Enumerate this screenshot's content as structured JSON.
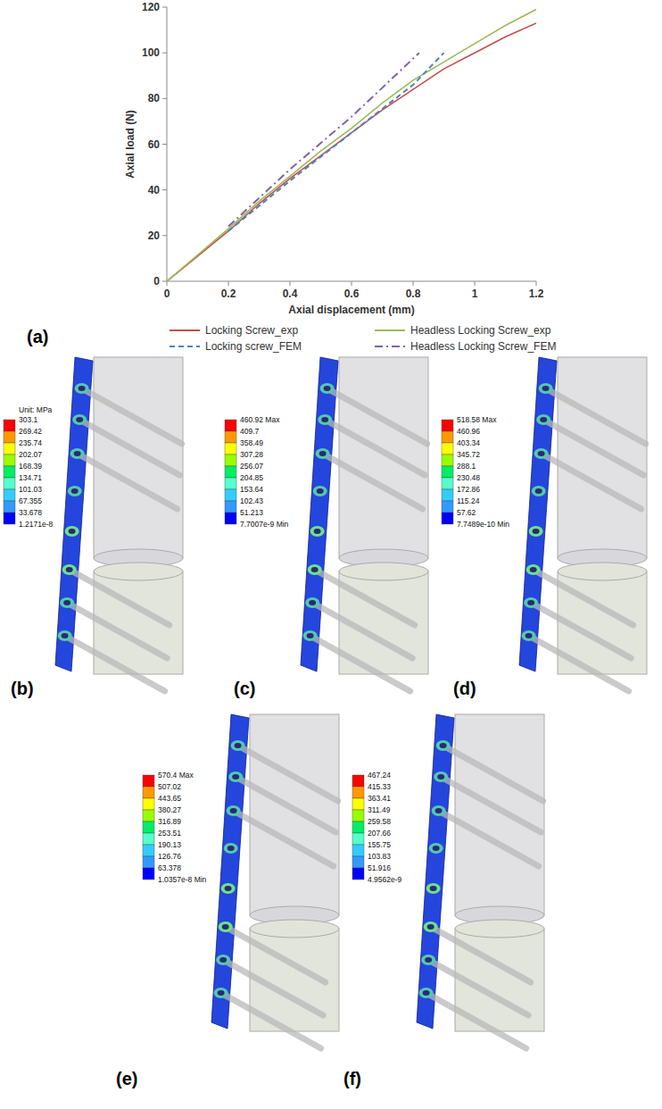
{
  "chart_data": {
    "type": "line",
    "panel_label": "(a)",
    "x_label": "Axial displacement (mm)",
    "y_label": "Axial load (N)",
    "xlim": [
      0,
      1.2
    ],
    "xticks": [
      0,
      0.2,
      0.4,
      0.6,
      0.8,
      1,
      1.2
    ],
    "ylim": [
      0,
      120
    ],
    "yticks": [
      0,
      20,
      40,
      60,
      80,
      100,
      120
    ],
    "grid": false,
    "legend": "bottom",
    "series": [
      {
        "name": "Locking Screw_exp",
        "color": "#c0504d",
        "line_style": "solid",
        "x": [
          0,
          0.1,
          0.2,
          0.3,
          0.4,
          0.5,
          0.6,
          0.7,
          0.8,
          0.9,
          1.0,
          1.1,
          1.2
        ],
        "values": [
          0,
          11,
          22,
          34,
          45,
          55,
          65,
          75,
          84,
          93,
          100,
          107,
          113
        ]
      },
      {
        "name": "Headless Locking Screw_exp",
        "color": "#9bbb59",
        "line_style": "solid",
        "x": [
          0,
          0.1,
          0.2,
          0.3,
          0.4,
          0.5,
          0.6,
          0.7,
          0.8,
          0.9,
          1.0,
          1.1,
          1.2
        ],
        "values": [
          0,
          11.5,
          23,
          35,
          46,
          57,
          67,
          78,
          88,
          96,
          104,
          112,
          119
        ]
      },
      {
        "name": "Locking screw_FEM",
        "color": "#4f81bd",
        "line_style": "dashed",
        "x": [
          0.2,
          0.4,
          0.6,
          0.8,
          0.9
        ],
        "values": [
          22,
          44,
          65,
          86,
          100
        ]
      },
      {
        "name": "Headless Locking Screw_FEM",
        "color": "#8064a2",
        "line_style": "dashdot",
        "x": [
          0.2,
          0.4,
          0.6,
          0.82
        ],
        "values": [
          24,
          49,
          72,
          100
        ]
      }
    ]
  },
  "fem_panels": [
    {
      "label": "(b)",
      "unit": "Unit: MPa",
      "levels": [
        "303.1",
        "269.42",
        "235.74",
        "202.07",
        "168.39",
        "134.71",
        "101.03",
        "67.355",
        "33.678",
        "1.2171e-8"
      ]
    },
    {
      "label": "(c)",
      "levels": [
        "460.92 Max",
        "409.7",
        "358.49",
        "307.28",
        "256.07",
        "204.85",
        "153.64",
        "102.43",
        "51.213",
        "7.7007e-9 Min"
      ]
    },
    {
      "label": "(d)",
      "levels": [
        "518.58 Max",
        "460.96",
        "403.34",
        "345.72",
        "288.1",
        "230.48",
        "172.86",
        "115.24",
        "57.62",
        "7.7489e-10 Min"
      ]
    },
    {
      "label": "(e)",
      "levels": [
        "570.4 Max",
        "507.02",
        "443.65",
        "380.27",
        "316.89",
        "253.51",
        "190.13",
        "126.76",
        "63.378",
        "1.0357e-8 Min"
      ]
    },
    {
      "label": "(f)",
      "levels": [
        "467.24",
        "415.33",
        "363.41",
        "311.49",
        "259.58",
        "207.66",
        "155.75",
        "103.83",
        "51.916",
        "4.9562e-9"
      ]
    }
  ]
}
